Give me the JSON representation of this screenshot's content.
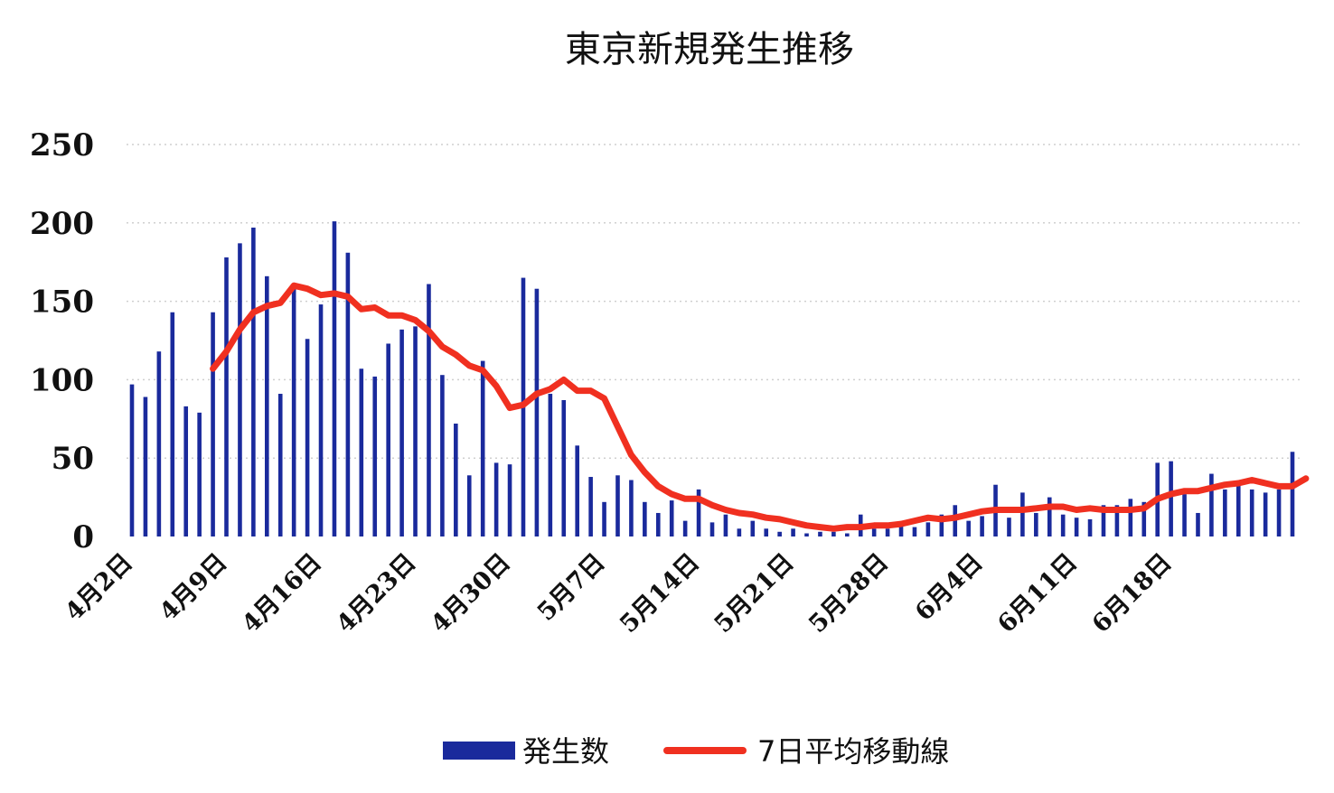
{
  "chart_data": {
    "type": "bar",
    "title": "東京新規発生推移",
    "xlabel": "",
    "ylabel": "",
    "ylim": [
      0,
      250
    ],
    "yticks": [
      "0",
      "50",
      "100",
      "150",
      "200",
      "250"
    ],
    "grid": true,
    "legend_position": "bottom",
    "x_tick_labels": [
      "4月2日",
      "4月9日",
      "4月16日",
      "4月23日",
      "4月30日",
      "5月7日",
      "5月14日",
      "5月21日",
      "5月28日",
      "6月4日",
      "6月11日",
      "6月18日"
    ],
    "x_tick_every": 7,
    "categories_start": "4月2日",
    "series": [
      {
        "name": "発生数",
        "kind": "bar",
        "color": "#1a2a9c",
        "values": [
          97,
          89,
          118,
          143,
          83,
          79,
          143,
          178,
          187,
          197,
          166,
          91,
          158,
          126,
          148,
          201,
          181,
          107,
          102,
          123,
          132,
          134,
          161,
          103,
          72,
          39,
          112,
          47,
          46,
          165,
          158,
          91,
          87,
          58,
          38,
          22,
          39,
          36,
          22,
          15,
          23,
          10,
          30,
          9,
          14,
          5,
          10,
          5,
          3,
          5,
          2,
          3,
          3,
          2,
          14,
          5,
          5,
          8,
          6,
          9,
          14,
          20,
          10,
          13,
          33,
          12,
          28,
          15,
          25,
          14,
          12,
          11,
          20,
          20,
          24,
          22,
          47,
          48,
          27,
          15,
          40,
          30,
          35,
          30,
          28,
          30,
          54
        ]
      },
      {
        "name": "7日平均移動線",
        "kind": "line",
        "color": "#f03020",
        "start_index": 6,
        "values": [
          107,
          118,
          132,
          143,
          147,
          149,
          160,
          158,
          154,
          155,
          153,
          145,
          146,
          141,
          141,
          138,
          131,
          121,
          116,
          109,
          106,
          96,
          82,
          84,
          91,
          94,
          100,
          93,
          93,
          88,
          70,
          52,
          41,
          32,
          27,
          24,
          24,
          20,
          17,
          15,
          14,
          12,
          11,
          9,
          7,
          6,
          5,
          6,
          6,
          7,
          7,
          8,
          10,
          12,
          11,
          12,
          14,
          16,
          17,
          17,
          17,
          18,
          19,
          19,
          17,
          18,
          17,
          17,
          17,
          18,
          24,
          27,
          29,
          29,
          31,
          33,
          34,
          36,
          34,
          32,
          32,
          37
        ]
      }
    ]
  }
}
